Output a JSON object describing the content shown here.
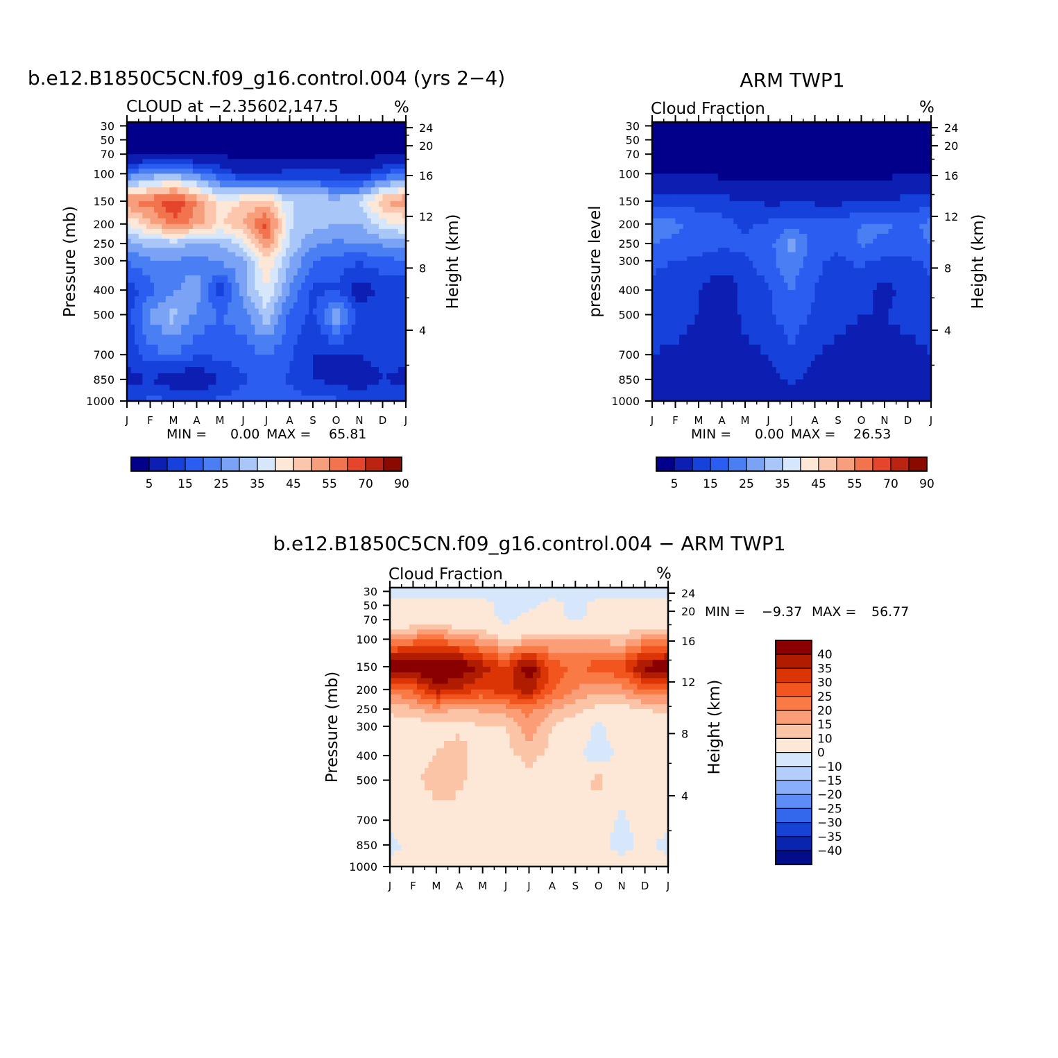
{
  "panels": [
    {
      "title": "b.e12.B1850C5CN.f09_g16.control.004 (yrs 2−4)",
      "left_label": "CLOUD at −2.35602,147.5",
      "units": "%",
      "ylabel_left": "Pressure (mb)",
      "ylabel_right": "Height (km)",
      "min_label": "MIN =",
      "min_value": "0.00",
      "max_label": "MAX =",
      "max_value": "65.81"
    },
    {
      "title": "ARM TWP1",
      "left_label": "Cloud Fraction",
      "units": "%",
      "ylabel_left": "pressure level",
      "ylabel_right": "Height (km)",
      "min_label": "MIN =",
      "min_value": "0.00",
      "max_label": "MAX =",
      "max_value": "26.53"
    },
    {
      "title": "b.e12.B1850C5CN.f09_g16.control.004 − ARM TWP1",
      "left_label": "Cloud Fraction",
      "units": "%",
      "ylabel_left": "Pressure (mb)",
      "ylabel_right": "Height (km)",
      "min_label": "MIN =",
      "min_value": "−9.37",
      "max_label": "MAX =",
      "max_value": "56.77"
    }
  ],
  "chart_data": [
    {
      "type": "heatmap",
      "title": "b.e12.B1850C5CN.f09_g16.control.004 (yrs 2−4)",
      "subtitle": "CLOUD at −2.35602,147.5",
      "units": "%",
      "x": [
        "J",
        "F",
        "M",
        "A",
        "M",
        "J",
        "J",
        "A",
        "S",
        "O",
        "N",
        "D",
        "J"
      ],
      "y_pressure_ticks": [
        30,
        50,
        70,
        100,
        150,
        200,
        250,
        300,
        400,
        500,
        700,
        850,
        1000
      ],
      "y_height_ticks": [
        24,
        20,
        16,
        12,
        8,
        4
      ],
      "xlabel": "",
      "ylabel": "Pressure (mb)",
      "y2label": "Height (km)",
      "min": 0.0,
      "max": 65.81,
      "levels": [
        30,
        50,
        70,
        100,
        150,
        200,
        250,
        300,
        400,
        500,
        700,
        850,
        1000
      ],
      "values": [
        [
          0,
          0,
          0,
          0,
          0,
          0,
          0,
          0,
          0,
          0,
          0,
          0,
          0
        ],
        [
          0,
          0,
          0,
          0,
          0,
          0,
          0,
          0,
          0,
          0,
          0,
          0,
          0
        ],
        [
          2,
          2,
          2,
          2,
          1,
          1,
          1,
          1,
          1,
          1,
          1,
          1,
          2
        ],
        [
          20,
          25,
          28,
          22,
          15,
          8,
          10,
          12,
          12,
          12,
          8,
          15,
          20
        ],
        [
          55,
          58,
          65,
          55,
          42,
          45,
          48,
          35,
          34,
          32,
          35,
          50,
          55
        ],
        [
          40,
          48,
          58,
          52,
          44,
          50,
          62,
          36,
          32,
          30,
          30,
          38,
          40
        ],
        [
          28,
          32,
          32,
          30,
          30,
          38,
          55,
          34,
          26,
          24,
          25,
          26,
          28
        ],
        [
          20,
          24,
          25,
          22,
          26,
          28,
          45,
          30,
          20,
          18,
          16,
          18,
          20
        ],
        [
          12,
          18,
          24,
          28,
          12,
          28,
          40,
          25,
          14,
          14,
          6,
          12,
          12
        ],
        [
          12,
          26,
          32,
          24,
          20,
          22,
          34,
          18,
          14,
          30,
          14,
          12,
          12
        ],
        [
          12,
          18,
          20,
          16,
          16,
          18,
          20,
          16,
          10,
          8,
          10,
          12,
          12
        ],
        [
          8,
          10,
          6,
          4,
          10,
          14,
          18,
          14,
          10,
          8,
          6,
          10,
          8
        ],
        [
          14,
          16,
          16,
          15,
          16,
          18,
          20,
          18,
          16,
          16,
          14,
          14,
          14
        ]
      ]
    },
    {
      "type": "heatmap",
      "title": "ARM TWP1",
      "subtitle": "Cloud Fraction",
      "units": "%",
      "x": [
        "J",
        "F",
        "M",
        "A",
        "M",
        "J",
        "J",
        "A",
        "S",
        "O",
        "N",
        "D",
        "J"
      ],
      "y_pressure_ticks": [
        30,
        50,
        70,
        100,
        150,
        200,
        250,
        300,
        400,
        500,
        700,
        850,
        1000
      ],
      "y_height_ticks": [
        24,
        20,
        16,
        12,
        8,
        4
      ],
      "xlabel": "",
      "ylabel": "pressure level",
      "y2label": "Height (km)",
      "min": 0.0,
      "max": 26.53,
      "levels": [
        30,
        50,
        70,
        100,
        150,
        200,
        250,
        300,
        400,
        500,
        700,
        850,
        1000
      ],
      "values": [
        [
          0,
          0,
          0,
          0,
          0,
          0,
          0,
          0,
          0,
          0,
          0,
          0,
          0
        ],
        [
          0,
          0,
          0,
          0,
          0,
          0,
          0,
          0,
          0,
          0,
          0,
          0,
          0
        ],
        [
          0,
          0,
          0,
          0,
          0,
          0,
          0,
          0,
          0,
          0,
          0,
          0,
          0
        ],
        [
          2,
          2,
          2,
          1,
          1,
          1,
          1,
          1,
          1,
          1,
          1,
          2,
          2
        ],
        [
          12,
          13,
          13,
          12,
          10,
          9,
          9,
          9,
          9,
          10,
          10,
          12,
          12
        ],
        [
          22,
          21,
          18,
          17,
          14,
          16,
          18,
          17,
          16,
          20,
          21,
          18,
          22
        ],
        [
          20,
          19,
          17,
          16,
          16,
          18,
          27,
          18,
          16,
          21,
          19,
          18,
          20
        ],
        [
          16,
          15,
          14,
          13,
          14,
          18,
          24,
          16,
          14,
          16,
          14,
          14,
          16
        ],
        [
          14,
          12,
          10,
          5,
          12,
          14,
          20,
          15,
          12,
          12,
          8,
          12,
          14
        ],
        [
          13,
          12,
          10,
          5,
          12,
          14,
          18,
          14,
          12,
          10,
          10,
          12,
          13
        ],
        [
          10,
          9,
          8,
          4,
          8,
          10,
          14,
          10,
          8,
          6,
          6,
          8,
          10
        ],
        [
          8,
          7,
          6,
          4,
          6,
          8,
          11,
          8,
          6,
          5,
          6,
          7,
          8
        ],
        [
          6,
          6,
          6,
          5,
          6,
          7,
          8,
          7,
          6,
          6,
          6,
          6,
          6
        ]
      ]
    },
    {
      "type": "heatmap",
      "title": "b.e12.B1850C5CN.f09_g16.control.004 − ARM TWP1",
      "subtitle": "Cloud Fraction",
      "units": "%",
      "x": [
        "J",
        "F",
        "M",
        "A",
        "M",
        "J",
        "J",
        "A",
        "S",
        "O",
        "N",
        "D",
        "J"
      ],
      "y_pressure_ticks": [
        30,
        50,
        70,
        100,
        150,
        200,
        250,
        300,
        400,
        500,
        700,
        850,
        1000
      ],
      "y_height_ticks": [
        24,
        20,
        16,
        12,
        8,
        4
      ],
      "xlabel": "",
      "ylabel": "Pressure (mb)",
      "y2label": "Height (km)",
      "min": -9.37,
      "max": 56.77,
      "levels": [
        30,
        50,
        70,
        100,
        150,
        200,
        250,
        300,
        400,
        500,
        700,
        850,
        1000
      ],
      "values": [
        [
          -2,
          -2,
          -2,
          -2,
          -2,
          -2,
          -2,
          -2,
          -2,
          -2,
          -2,
          -2,
          -2
        ],
        [
          2,
          2,
          2,
          2,
          2,
          -2,
          -2,
          2,
          -2,
          2,
          2,
          2,
          2
        ],
        [
          3,
          3,
          3,
          3,
          3,
          -2,
          3,
          3,
          -2,
          3,
          3,
          3,
          3
        ],
        [
          20,
          22,
          24,
          20,
          16,
          10,
          12,
          14,
          14,
          14,
          12,
          18,
          20
        ],
        [
          45,
          46,
          48,
          46,
          38,
          30,
          45,
          28,
          24,
          28,
          30,
          42,
          45
        ],
        [
          22,
          26,
          38,
          34,
          30,
          34,
          38,
          26,
          20,
          16,
          18,
          26,
          22
        ],
        [
          12,
          14,
          18,
          14,
          16,
          18,
          22,
          16,
          12,
          8,
          8,
          10,
          12
        ],
        [
          6,
          6,
          8,
          8,
          10,
          10,
          18,
          10,
          6,
          -2,
          6,
          6,
          6
        ],
        [
          2,
          6,
          10,
          14,
          2,
          8,
          12,
          8,
          2,
          -4,
          2,
          2,
          2
        ],
        [
          3,
          8,
          14,
          12,
          6,
          4,
          8,
          6,
          4,
          14,
          2,
          2,
          3
        ],
        [
          2,
          5,
          6,
          6,
          4,
          4,
          6,
          5,
          4,
          2,
          -1,
          2,
          2
        ],
        [
          -2,
          2,
          2,
          2,
          4,
          6,
          4,
          2,
          2,
          2,
          -2,
          2,
          -2
        ],
        [
          2,
          2,
          2,
          2,
          2,
          3,
          3,
          2,
          2,
          2,
          2,
          2,
          2
        ]
      ]
    }
  ],
  "colorbar_seq": {
    "labels": [
      "5",
      "15",
      "25",
      "35",
      "45",
      "55",
      "70",
      "90"
    ],
    "colors": [
      "#02008a",
      "#0c1fb2",
      "#1641da",
      "#2a5df0",
      "#4a7ff4",
      "#7ba3f5",
      "#a9c6f8",
      "#d6e6fb",
      "#fde7d6",
      "#fbc6ab",
      "#f79e7d",
      "#f2744f",
      "#e5452a",
      "#bb2410",
      "#8a0a00"
    ]
  },
  "colorbar_div": {
    "labels": [
      "40",
      "35",
      "30",
      "25",
      "20",
      "15",
      "10",
      "0",
      "−10",
      "−15",
      "−20",
      "−25",
      "−30",
      "−35",
      "−40"
    ],
    "colors": [
      "#8a0000",
      "#b01c00",
      "#db3506",
      "#f2551e",
      "#f97a45",
      "#fb9e77",
      "#fbc4a6",
      "#fde8d7",
      "#d6e7fc",
      "#b3cdfc",
      "#8aaffa",
      "#5f8df7",
      "#3368ed",
      "#1743d4",
      "#0a24ad",
      "#020d8a"
    ]
  }
}
